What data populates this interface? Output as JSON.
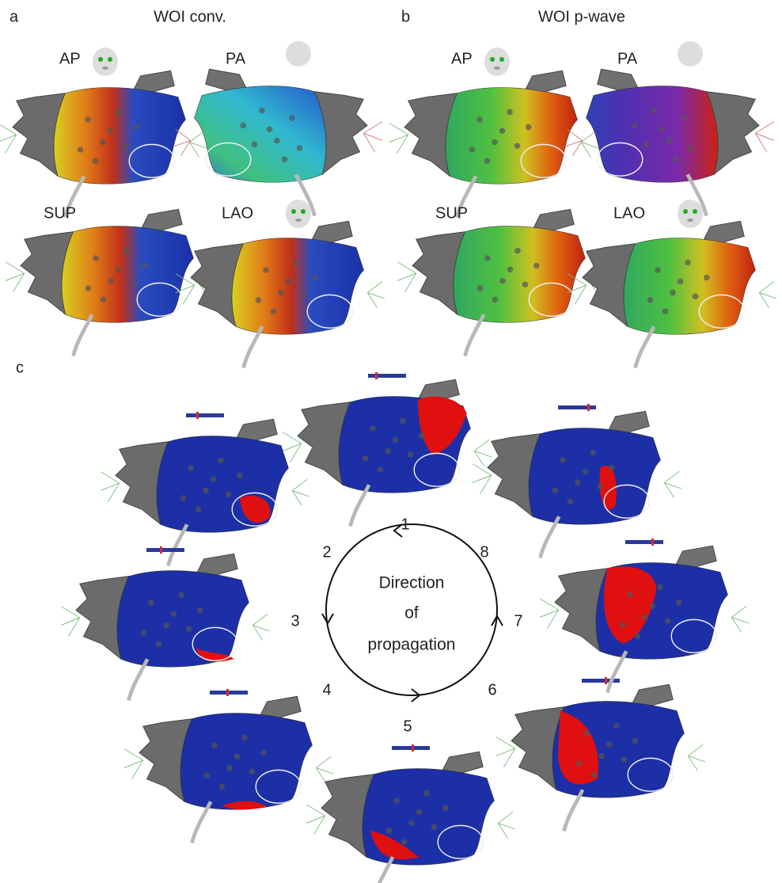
{
  "panels": [
    {
      "letter": "a",
      "title": "WOI conv.",
      "views": [
        "AP",
        "PA",
        "SUP",
        "LAO"
      ]
    },
    {
      "letter": "b",
      "title": "WOI p-wave",
      "views": [
        "AP",
        "PA",
        "SUP",
        "LAO"
      ]
    }
  ],
  "panel_c": {
    "letter": "c",
    "steps": [
      1,
      2,
      3,
      4,
      5,
      6,
      7,
      8
    ],
    "center_label": [
      "Direction",
      "of",
      "propagation"
    ]
  }
}
